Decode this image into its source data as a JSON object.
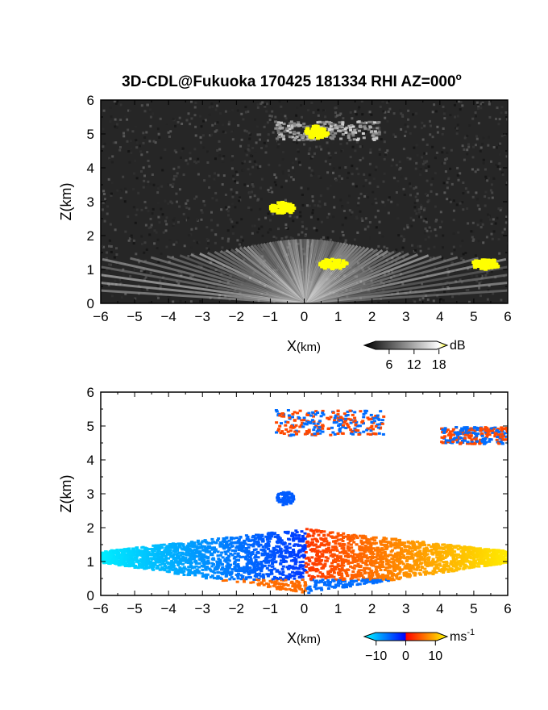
{
  "title_main": "3D-CDL@Fukuoka 170425 181334 RHI AZ=000",
  "title_degree": "o",
  "chart_data": [
    {
      "type": "heatmap",
      "name": "backscatter-intensity",
      "xlabel_main": "X",
      "xlabel_unit": "(km)",
      "ylabel": "Z(km)",
      "xlim": [
        -6,
        6
      ],
      "ylim": [
        0,
        6
      ],
      "xticks": [
        "-6",
        "-5",
        "-4",
        "-3",
        "-2",
        "-1",
        "0",
        "1",
        "2",
        "3",
        "4",
        "5",
        "6"
      ],
      "yticks": [
        "0",
        "1",
        "2",
        "3",
        "4",
        "5",
        "6"
      ],
      "colorbar": {
        "unit": "dB",
        "ticks": [
          "6",
          "12",
          "18"
        ],
        "tick_values": [
          6,
          12,
          18
        ],
        "range": [
          0,
          20
        ],
        "colors": [
          "#000000",
          "#ffffff",
          "#ffff00"
        ]
      },
      "features": [
        {
          "type": "scan-fan",
          "x_range": [
            -6,
            6
          ],
          "z_top": 1.9,
          "intensity_db": 12
        },
        {
          "type": "cloud-layer",
          "x_range": [
            -0.9,
            2.2
          ],
          "z_range": [
            4.85,
            5.4
          ],
          "intensity_db": 11
        },
        {
          "type": "strong-echo",
          "x": 0.3,
          "z": 5.1,
          "intensity_db": 20
        },
        {
          "type": "strong-echo",
          "x": -0.7,
          "z": 2.85,
          "intensity_db": 20
        },
        {
          "type": "strong-echo",
          "x": 0.8,
          "z": 1.2,
          "intensity_db": 20
        },
        {
          "type": "strong-echo",
          "x": 5.3,
          "z": 1.2,
          "intensity_db": 20
        }
      ]
    },
    {
      "type": "heatmap",
      "name": "radial-velocity",
      "xlabel_main": "X",
      "xlabel_unit": "(km)",
      "ylabel": "Z(km)",
      "xlim": [
        -6,
        6
      ],
      "ylim": [
        0,
        6
      ],
      "xticks": [
        "-6",
        "-5",
        "-4",
        "-3",
        "-2",
        "-1",
        "0",
        "1",
        "2",
        "3",
        "4",
        "5",
        "6"
      ],
      "yticks": [
        "0",
        "1",
        "2",
        "3",
        "4",
        "5",
        "6"
      ],
      "colorbar": {
        "unit_main": "ms",
        "unit_exp": "-1",
        "ticks": [
          "-10",
          "0",
          "10"
        ],
        "tick_values": [
          -10,
          0,
          10
        ],
        "range": [
          -14,
          14
        ],
        "colors": [
          "#00ffff",
          "#0000ff",
          "#ff0000",
          "#ffff00"
        ]
      },
      "features": [
        {
          "type": "negative-wedge",
          "x_range": [
            -6,
            0
          ],
          "z_top": 1.9,
          "velocity": -8
        },
        {
          "type": "positive-wedge",
          "x_range": [
            0,
            6
          ],
          "z_top": 1.9,
          "velocity": 8
        },
        {
          "type": "cloud-layer",
          "x_range": [
            -0.9,
            2.3
          ],
          "z_range": [
            4.75,
            5.5
          ],
          "velocity": 0
        },
        {
          "type": "cloud-layer",
          "x_range": [
            4.0,
            6.0
          ],
          "z_range": [
            4.5,
            5.0
          ],
          "velocity": 0
        },
        {
          "type": "convective-plume",
          "x": -0.6,
          "z": 2.9,
          "velocity": -5
        }
      ]
    }
  ]
}
